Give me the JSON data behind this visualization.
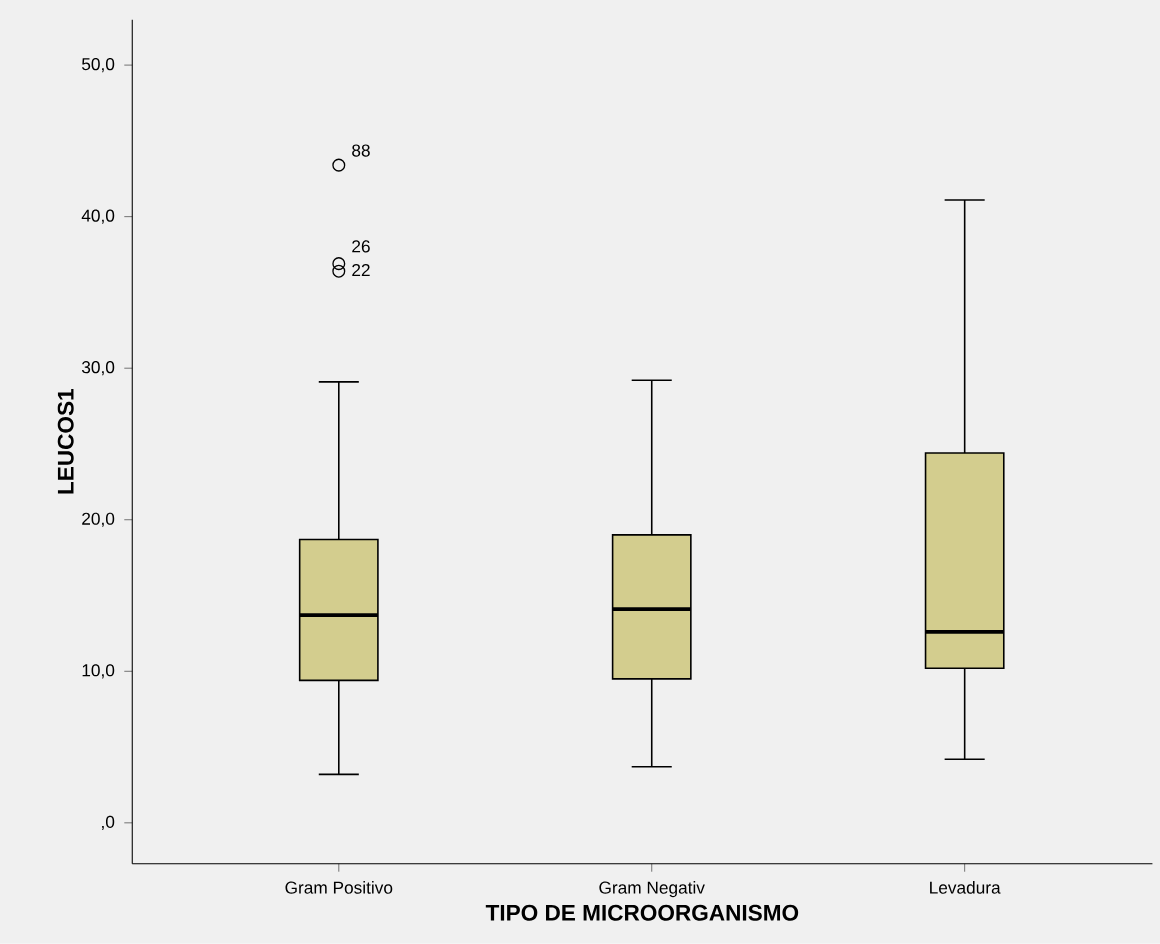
{
  "chart_data": {
    "type": "box",
    "xlabel": "TIPO DE MICROORGANISMO",
    "ylabel": "LEUCOS1",
    "categories": [
      "Gram Positivo",
      "Gram Negativ",
      "Levadura"
    ],
    "boxes": [
      {
        "low": 3.2,
        "q1": 9.4,
        "median": 13.7,
        "q3": 18.7,
        "high": 29.1,
        "outliers": [
          43.4,
          36.9,
          36.4
        ]
      },
      {
        "low": 3.7,
        "q1": 9.5,
        "median": 14.1,
        "q3": 19.0,
        "high": 29.2
      },
      {
        "low": 4.2,
        "q1": 10.2,
        "median": 12.6,
        "q3": 24.4,
        "high": 41.1
      }
    ],
    "color": "#d3cd8e",
    "ylim": [
      -2.7,
      53
    ],
    "yticks": [
      {
        "value": 0,
        "label": ",0"
      },
      {
        "value": 10,
        "label": "10,0"
      },
      {
        "value": 20,
        "label": "20,0"
      },
      {
        "value": 30,
        "label": "30,0"
      },
      {
        "value": 40,
        "label": "40,0"
      },
      {
        "value": 50,
        "label": "50,0"
      }
    ],
    "annotations": [
      "88",
      "26",
      "22"
    ],
    "marker": "circle",
    "grid": false
  }
}
